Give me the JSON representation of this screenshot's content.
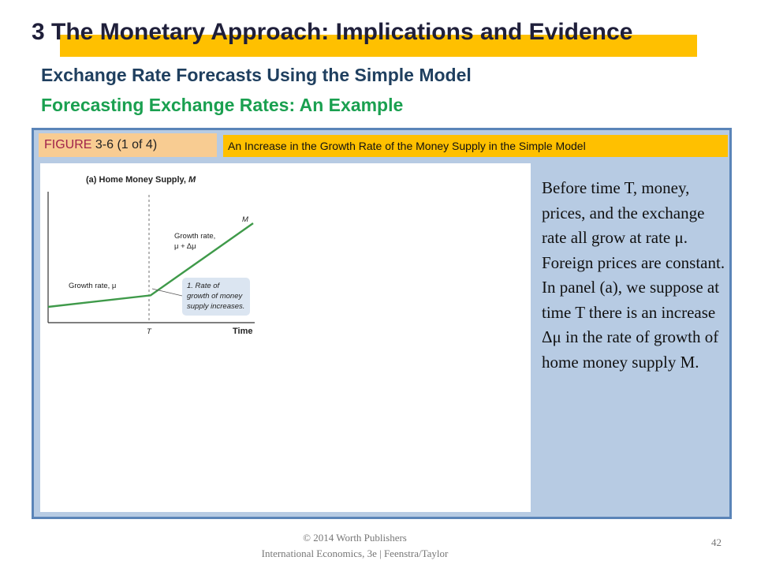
{
  "slide": {
    "title": "3  The Monetary Approach: Implications and Evidence",
    "subtitle": "Exchange Rate Forecasts Using the Simple Model",
    "subsubtitle": "Forecasting Exchange Rates: An Example"
  },
  "figure": {
    "label_word": "FIGURE",
    "label_number": " 3-6 (1 of 4)",
    "caption": "An Increase in the Growth Rate of the Money Supply in the Simple Model"
  },
  "chart_data": {
    "type": "line",
    "title": "(a) Home Money Supply, M",
    "xlabel": "Time",
    "ylabel": "",
    "x_ticks": [
      "T"
    ],
    "series": [
      {
        "name": "M",
        "x": [
          0,
          1,
          2
        ],
        "y": [
          0.0,
          0.22,
          1.6
        ]
      }
    ],
    "annotations": {
      "growth_rate_before": "Growth rate, μ",
      "growth_rate_after_line1": "Growth rate,",
      "growth_rate_after_line2": "μ + Δμ",
      "callout_line1": "1. Rate of",
      "callout_line2": "growth of money",
      "callout_line3": "supply increases."
    },
    "colors": {
      "line": "#3f9a4a",
      "callout_bg": "#dbe5f1",
      "dashed": "#888888"
    }
  },
  "description": "Before time T, money, prices, and the exchange rate all grow at rate μ. Foreign prices are constant. In panel (a), we suppose at time T there is an increase Δμ in the rate of growth of home money supply M.",
  "footer": {
    "line1": "© 2014 Worth Publishers",
    "line2": "International Economics, 3e  |  Feenstra/Taylor",
    "page": "42"
  }
}
